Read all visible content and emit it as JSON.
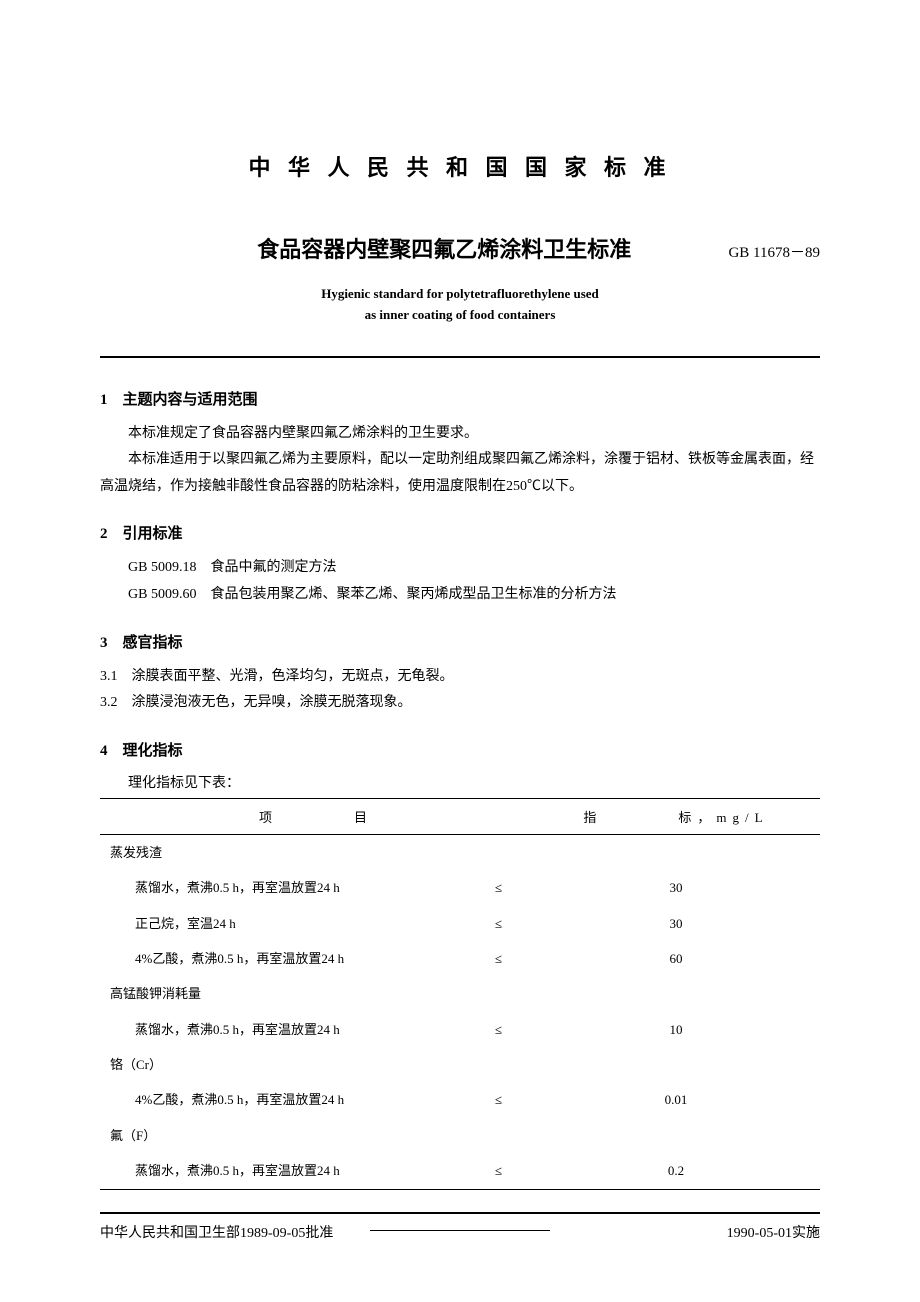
{
  "header": {
    "country_title": "中 华 人 民 共 和 国 国 家 标 准",
    "main_title": "食品容器内壁聚四氟乙烯涂料卫生标准",
    "standard_code": "GB 11678－89",
    "en_title_line1": "Hygienic standard for polytetrafluorethylene used",
    "en_title_line2": "as inner coating of food containers"
  },
  "sections": {
    "s1": {
      "heading": "1　主题内容与适用范围",
      "p1": "本标准规定了食品容器内壁聚四氟乙烯涂料的卫生要求。",
      "p2": "本标准适用于以聚四氟乙烯为主要原料，配以一定助剂组成聚四氟乙烯涂料，涂覆于铝材、铁板等金属表面，经高温烧结，作为接触非酸性食品容器的防粘涂料，使用温度限制在250℃以下。"
    },
    "s2": {
      "heading": "2　引用标准",
      "ref1": "GB 5009.18　食品中氟的测定方法",
      "ref2": "GB 5009.60　食品包装用聚乙烯、聚苯乙烯、聚丙烯成型品卫生标准的分析方法"
    },
    "s3": {
      "heading": "3　感官指标",
      "i1": "3.1　涂膜表面平整、光滑，色泽均匀，无斑点，无龟裂。",
      "i2": "3.2　涂膜浸泡液无色，无异嗅，涂膜无脱落现象。"
    },
    "s4": {
      "heading": "4　理化指标",
      "intro": "理化指标见下表："
    }
  },
  "table": {
    "header_item": "项　　　　目",
    "header_value": "指　　　　标，mg/L",
    "op": "≤",
    "groups": {
      "g1": "蒸发残渣",
      "g1r1_item": "蒸馏水，煮沸0.5 h，再室温放置24 h",
      "g1r1_val": "30",
      "g1r2_item": "正己烷，室温24 h",
      "g1r2_val": "30",
      "g1r3_item": "4%乙酸，煮沸0.5 h，再室温放置24 h",
      "g1r3_val": "60",
      "g2": "高锰酸钾消耗量",
      "g2r1_item": "蒸馏水，煮沸0.5 h，再室温放置24 h",
      "g2r1_val": "10",
      "g3": "铬（Cr）",
      "g3r1_item": "4%乙酸，煮沸0.5 h，再室温放置24 h",
      "g3r1_val": "0.01",
      "g4": "氟（F）",
      "g4r1_item": "蒸馏水，煮沸0.5 h，再室温放置24 h",
      "g4r1_val": "0.2"
    }
  },
  "footer": {
    "left": "中华人民共和国卫生部1989-09-05批准",
    "right": "1990-05-01实施"
  }
}
